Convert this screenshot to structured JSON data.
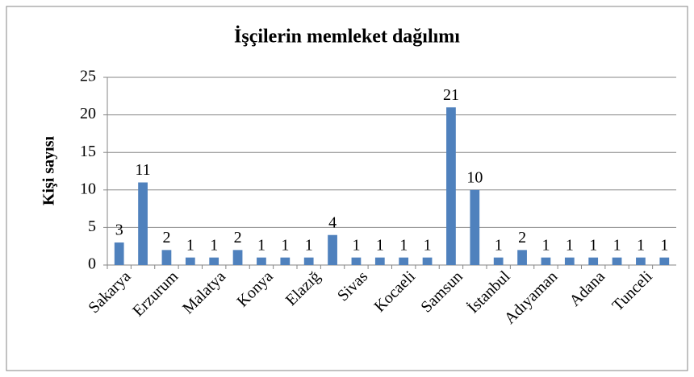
{
  "chart_data": {
    "type": "bar",
    "title": "İşçilerin memleket dağılımı",
    "y_label": "Kişi sayısı",
    "categories": [
      "Sakarya",
      null,
      "Erzurum",
      null,
      "Malatya",
      null,
      "Konya",
      null,
      "Elazığ",
      null,
      "Sivas",
      null,
      "Kocaeli",
      null,
      "Samsun",
      null,
      "İstanbul",
      null,
      "Adıyaman",
      null,
      "Adana",
      null,
      "Tunceli",
      null
    ],
    "values": [
      3,
      11,
      2,
      1,
      1,
      2,
      1,
      1,
      1,
      4,
      1,
      1,
      1,
      1,
      21,
      10,
      1,
      2,
      1,
      1,
      1,
      1,
      1,
      1
    ],
    "color": "#4f81bd",
    "ylim": [
      0,
      25
    ],
    "yticks": [
      0,
      5,
      10,
      15,
      20,
      25
    ],
    "grid": true,
    "data_labels": true
  }
}
